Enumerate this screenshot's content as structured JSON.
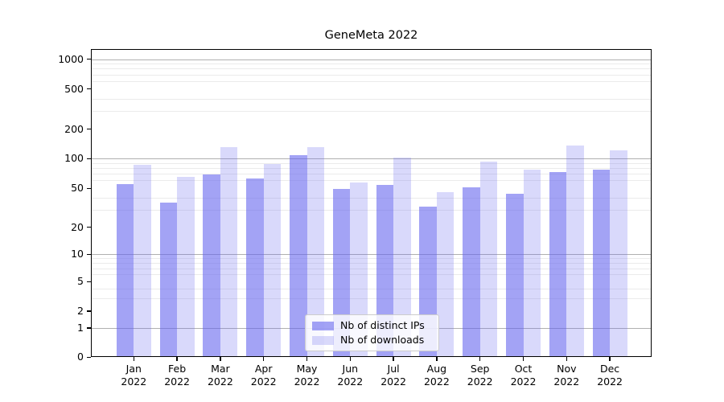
{
  "title": "GeneMeta 2022",
  "chart_data": {
    "type": "bar",
    "title": "GeneMeta 2022",
    "categories": [
      "Jan\n2022",
      "Feb\n2022",
      "Mar\n2022",
      "Apr\n2022",
      "May\n2022",
      "Jun\n2022",
      "Jul\n2022",
      "Aug\n2022",
      "Sep\n2022",
      "Oct\n2022",
      "Nov\n2022",
      "Dec\n2022"
    ],
    "series": [
      {
        "name": "Nb of distinct IPs",
        "color": "#6666ee",
        "alpha": 0.6,
        "values": [
          54,
          35,
          68,
          61,
          105,
          48,
          53,
          32,
          50,
          43,
          71,
          75
        ]
      },
      {
        "name": "Nb of downloads",
        "color": "#6666ee",
        "alpha": 0.25,
        "values": [
          85,
          64,
          128,
          86,
          128,
          56,
          100,
          45,
          91,
          76,
          134,
          118
        ]
      }
    ],
    "yscale": "symlog",
    "ylim": [
      0,
      1270
    ],
    "yticks": [
      0,
      1,
      2,
      5,
      10,
      20,
      50,
      100,
      200,
      500,
      1000
    ],
    "major_gridlines": [
      1,
      10,
      100,
      1000
    ],
    "minor_gridlines": [
      3,
      4,
      6,
      7,
      8,
      9,
      30,
      40,
      60,
      70,
      80,
      90,
      300,
      400,
      600,
      700,
      800,
      900
    ],
    "grid": true,
    "legend_position": "lower center",
    "legend_entries": [
      "Nb of distinct IPs",
      "Nb of downloads"
    ]
  },
  "colors": {
    "bar_base": "#6666ee",
    "major_grid": "#b0b0b0",
    "minor_grid": "#ebebeb",
    "spine": "#000000",
    "background": "#ffffff"
  }
}
